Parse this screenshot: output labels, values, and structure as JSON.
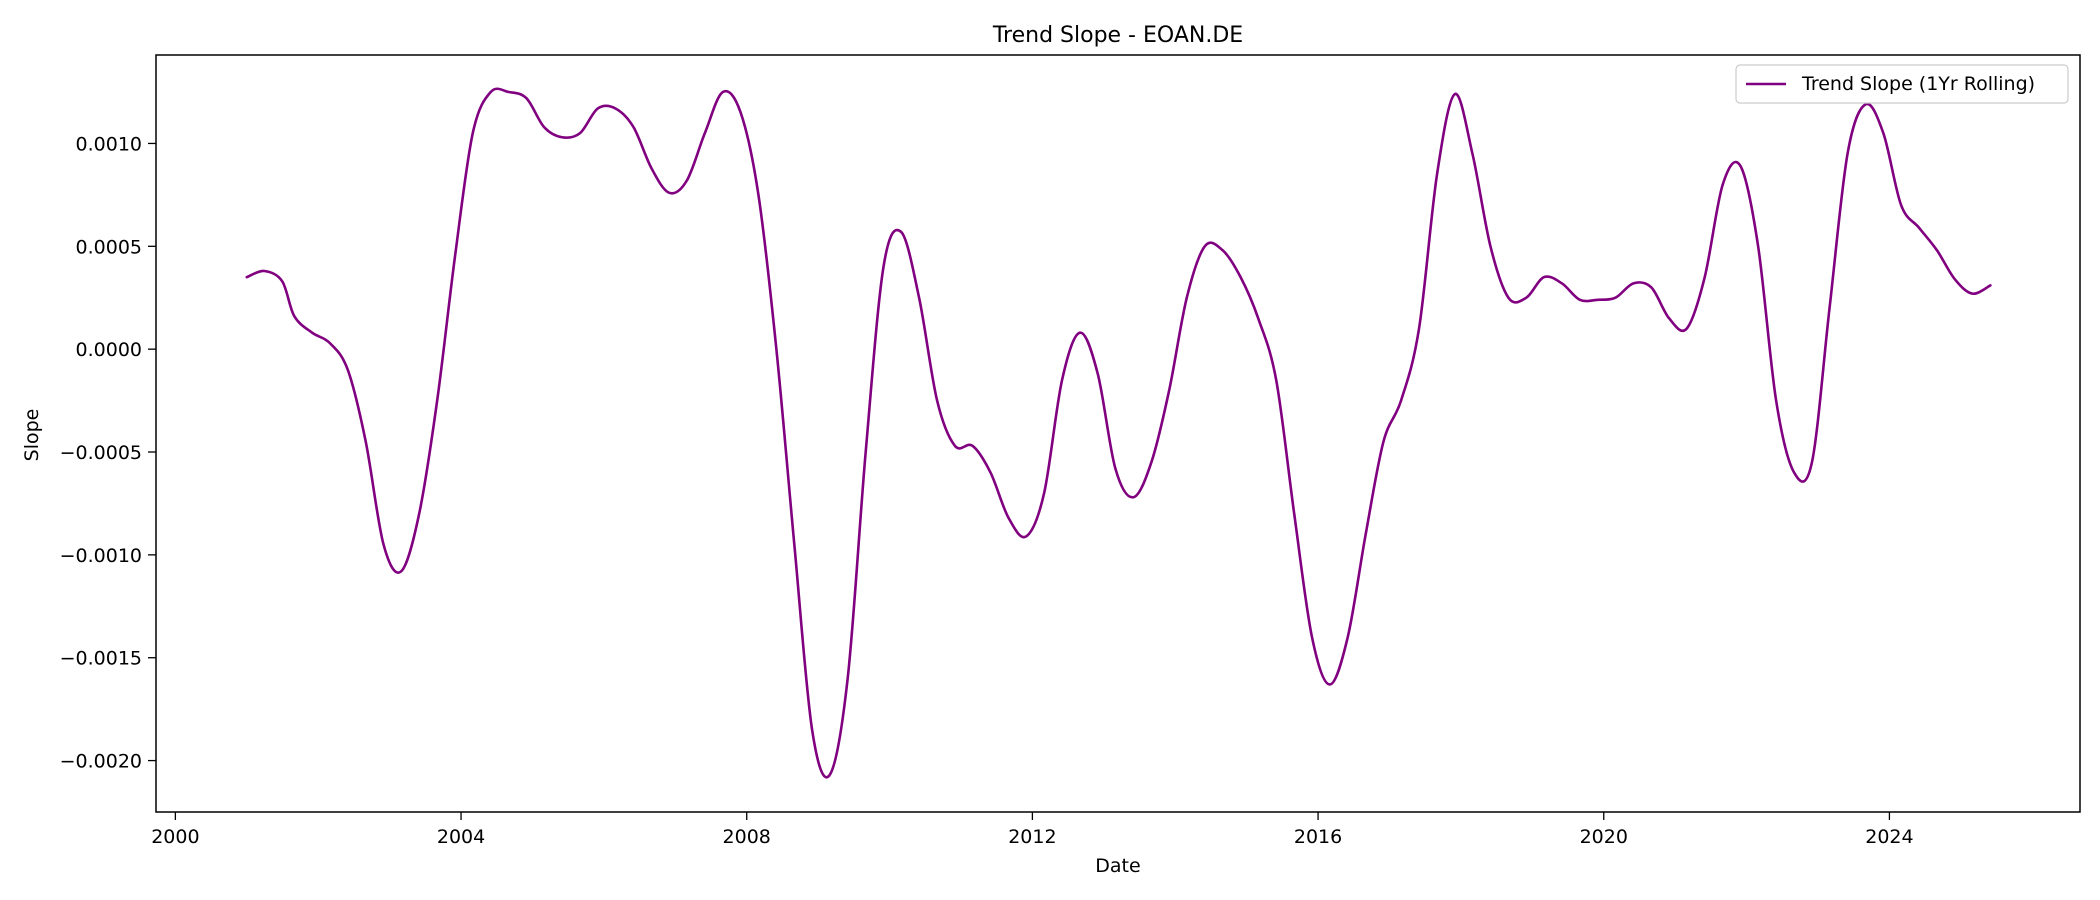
{
  "chart_data": {
    "type": "line",
    "title": "Trend Slope - EOAN.DE",
    "xlabel": "Date",
    "ylabel": "Slope",
    "x_axis": {
      "type": "date",
      "range": [
        "1999-09-24",
        "2026-09-02"
      ],
      "ticks": [
        {
          "value": "2000-01-01",
          "label": "2000"
        },
        {
          "value": "2004-01-01",
          "label": "2004"
        },
        {
          "value": "2008-01-01",
          "label": "2008"
        },
        {
          "value": "2012-01-01",
          "label": "2012"
        },
        {
          "value": "2016-01-01",
          "label": "2016"
        },
        {
          "value": "2020-01-01",
          "label": "2020"
        },
        {
          "value": "2024-01-01",
          "label": "2024"
        }
      ]
    },
    "y_axis": {
      "range": [
        -0.00225,
        0.00143
      ],
      "ticks": [
        {
          "value": 0.001,
          "label": "0.0010"
        },
        {
          "value": 0.0005,
          "label": "0.0005"
        },
        {
          "value": 0.0,
          "label": "0.0000"
        },
        {
          "value": -0.0005,
          "label": "−0.0005"
        },
        {
          "value": -0.001,
          "label": "−0.0010"
        },
        {
          "value": -0.0015,
          "label": "−0.0015"
        },
        {
          "value": -0.002,
          "label": "−0.0020"
        }
      ]
    },
    "grid": false,
    "legend": {
      "position": "top-right"
    },
    "series": [
      {
        "name": "Trend Slope (1Yr Rolling)",
        "color": "#800080",
        "points": [
          [
            "2001-01-01",
            0.00035
          ],
          [
            "2001-04-01",
            0.00038
          ],
          [
            "2001-07-01",
            0.00033
          ],
          [
            "2001-09-01",
            0.00016
          ],
          [
            "2001-12-01",
            8e-05
          ],
          [
            "2002-03-01",
            3e-05
          ],
          [
            "2002-06-01",
            -0.0001
          ],
          [
            "2002-09-01",
            -0.00045
          ],
          [
            "2002-12-01",
            -0.00095
          ],
          [
            "2003-03-01",
            -0.00108
          ],
          [
            "2003-06-01",
            -0.0008
          ],
          [
            "2003-09-01",
            -0.00025
          ],
          [
            "2003-12-01",
            0.00045
          ],
          [
            "2004-03-01",
            0.00105
          ],
          [
            "2004-06-01",
            0.00125
          ],
          [
            "2004-09-01",
            0.00125
          ],
          [
            "2004-12-01",
            0.00122
          ],
          [
            "2005-03-01",
            0.00108
          ],
          [
            "2005-06-01",
            0.00103
          ],
          [
            "2005-09-01",
            0.00105
          ],
          [
            "2005-12-01",
            0.00117
          ],
          [
            "2006-03-01",
            0.00117
          ],
          [
            "2006-06-01",
            0.00108
          ],
          [
            "2006-09-01",
            0.00088
          ],
          [
            "2006-12-01",
            0.00076
          ],
          [
            "2007-03-01",
            0.00082
          ],
          [
            "2007-06-01",
            0.00105
          ],
          [
            "2007-09-01",
            0.00125
          ],
          [
            "2007-12-01",
            0.00115
          ],
          [
            "2008-03-01",
            0.00075
          ],
          [
            "2008-06-01",
            0.0
          ],
          [
            "2008-09-01",
            -0.00095
          ],
          [
            "2008-12-01",
            -0.00185
          ],
          [
            "2009-03-01",
            -0.00207
          ],
          [
            "2009-06-01",
            -0.0016
          ],
          [
            "2009-09-01",
            -0.0005
          ],
          [
            "2009-12-01",
            0.0004
          ],
          [
            "2010-03-01",
            0.00057
          ],
          [
            "2010-06-01",
            0.00025
          ],
          [
            "2010-09-01",
            -0.00025
          ],
          [
            "2010-12-01",
            -0.00047
          ],
          [
            "2011-03-01",
            -0.00047
          ],
          [
            "2011-06-01",
            -0.0006
          ],
          [
            "2011-09-01",
            -0.00082
          ],
          [
            "2011-12-01",
            -0.00091
          ],
          [
            "2012-03-01",
            -0.0007
          ],
          [
            "2012-06-01",
            -0.00015
          ],
          [
            "2012-09-01",
            8e-05
          ],
          [
            "2012-12-01",
            -0.00012
          ],
          [
            "2013-03-01",
            -0.00058
          ],
          [
            "2013-06-01",
            -0.00072
          ],
          [
            "2013-09-01",
            -0.00055
          ],
          [
            "2013-12-01",
            -0.0002
          ],
          [
            "2014-03-01",
            0.00025
          ],
          [
            "2014-06-01",
            0.0005
          ],
          [
            "2014-09-01",
            0.00048
          ],
          [
            "2014-12-01",
            0.00035
          ],
          [
            "2015-03-01",
            0.00015
          ],
          [
            "2015-06-01",
            -0.00015
          ],
          [
            "2015-09-01",
            -0.0008
          ],
          [
            "2015-12-01",
            -0.0014
          ],
          [
            "2016-03-01",
            -0.00163
          ],
          [
            "2016-06-01",
            -0.0014
          ],
          [
            "2016-09-01",
            -0.0009
          ],
          [
            "2016-12-01",
            -0.00045
          ],
          [
            "2017-03-01",
            -0.00025
          ],
          [
            "2017-06-01",
            0.0001
          ],
          [
            "2017-09-01",
            0.00085
          ],
          [
            "2017-12-01",
            0.00124
          ],
          [
            "2018-03-01",
            0.00095
          ],
          [
            "2018-06-01",
            0.0005
          ],
          [
            "2018-09-01",
            0.00025
          ],
          [
            "2018-12-01",
            0.00025
          ],
          [
            "2019-03-01",
            0.00035
          ],
          [
            "2019-06-01",
            0.00032
          ],
          [
            "2019-09-01",
            0.00024
          ],
          [
            "2019-12-01",
            0.00024
          ],
          [
            "2020-03-01",
            0.00025
          ],
          [
            "2020-06-01",
            0.00032
          ],
          [
            "2020-09-01",
            0.0003
          ],
          [
            "2020-12-01",
            0.00015
          ],
          [
            "2021-03-01",
            0.0001
          ],
          [
            "2021-06-01",
            0.00035
          ],
          [
            "2021-09-01",
            0.0008
          ],
          [
            "2021-12-01",
            0.00089
          ],
          [
            "2022-03-01",
            0.0005
          ],
          [
            "2022-06-01",
            -0.00025
          ],
          [
            "2022-09-01",
            -0.0006
          ],
          [
            "2022-12-01",
            -0.00055
          ],
          [
            "2023-03-01",
            0.0002
          ],
          [
            "2023-06-01",
            0.00095
          ],
          [
            "2023-09-01",
            0.00119
          ],
          [
            "2023-12-01",
            0.00105
          ],
          [
            "2024-03-01",
            0.0007
          ],
          [
            "2024-06-01",
            0.00059
          ],
          [
            "2024-09-01",
            0.00048
          ],
          [
            "2024-12-01",
            0.00034
          ],
          [
            "2025-03-01",
            0.00027
          ],
          [
            "2025-06-01",
            0.00031
          ]
        ]
      }
    ]
  }
}
